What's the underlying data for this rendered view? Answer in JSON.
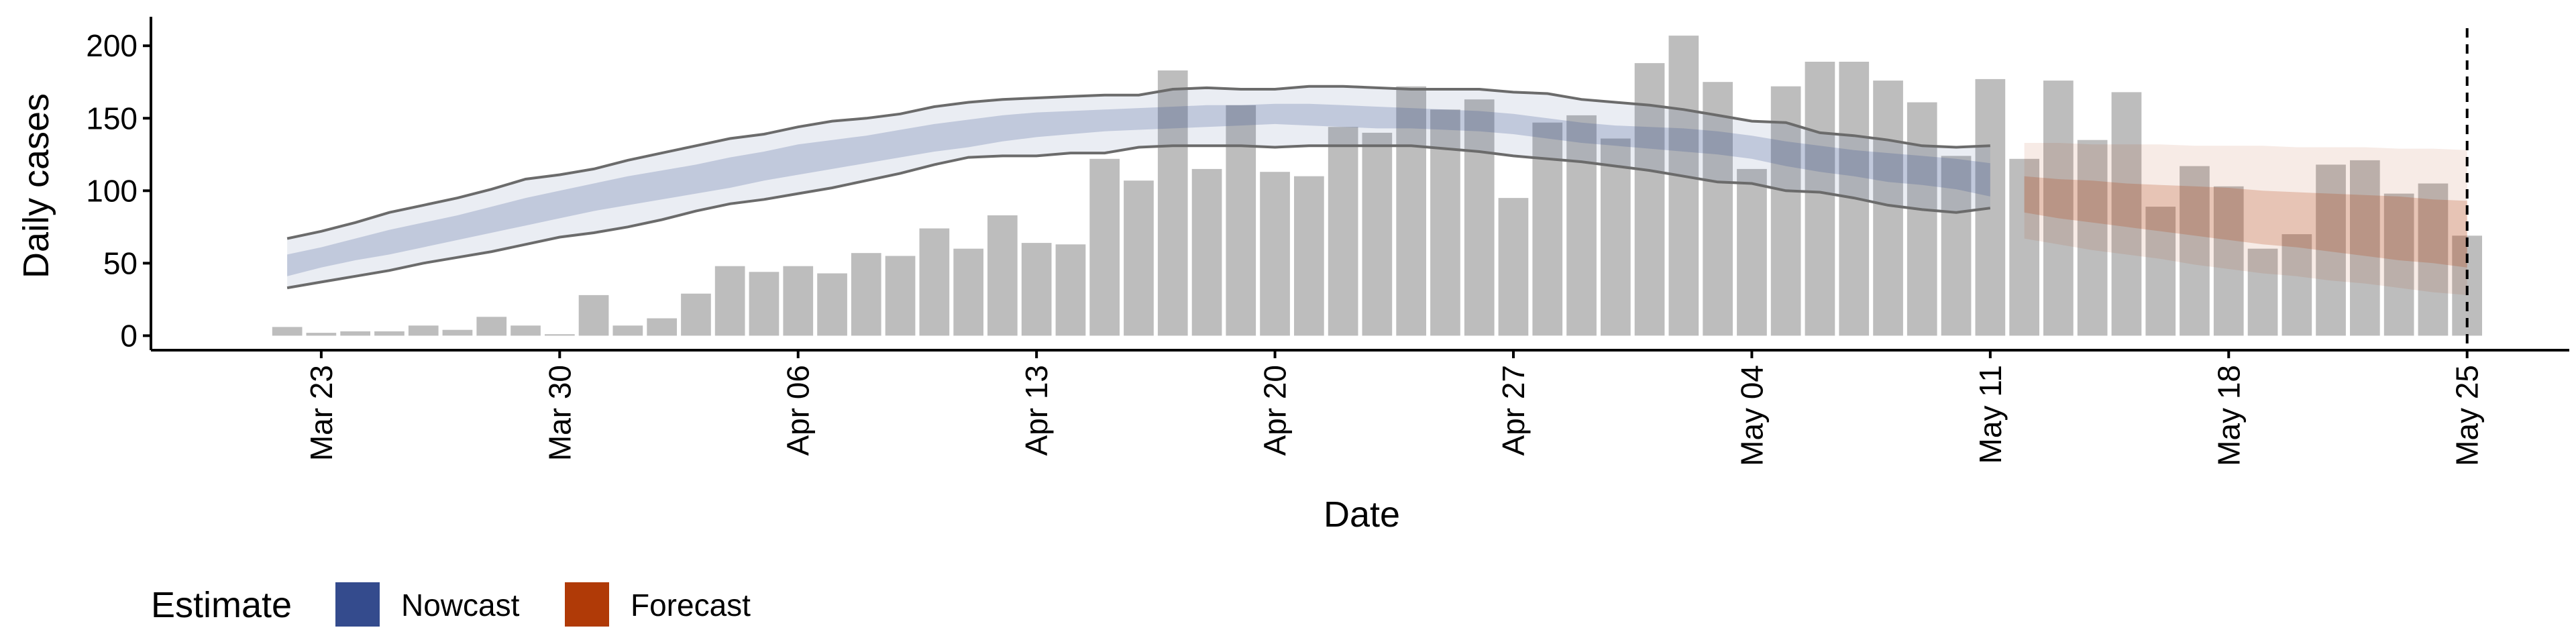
{
  "chart_data": {
    "type": "bar",
    "title": "",
    "xlabel": "Date",
    "ylabel": "Daily cases",
    "ylim": [
      -10,
      220
    ],
    "yticks": [
      0,
      50,
      100,
      150,
      200
    ],
    "x_tick_labels": [
      {
        "label": "Mar 23",
        "date": "2020-03-23"
      },
      {
        "label": "Mar 30",
        "date": "2020-03-30"
      },
      {
        "label": "Apr 06",
        "date": "2020-04-06"
      },
      {
        "label": "Apr 13",
        "date": "2020-04-13"
      },
      {
        "label": "Apr 20",
        "date": "2020-04-20"
      },
      {
        "label": "Apr 27",
        "date": "2020-04-27"
      },
      {
        "label": "May 04",
        "date": "2020-05-04"
      },
      {
        "label": "May 11",
        "date": "2020-05-11"
      },
      {
        "label": "May 18",
        "date": "2020-05-18"
      },
      {
        "label": "May 25",
        "date": "2020-05-25"
      }
    ],
    "xlim": [
      "2020-03-18",
      "2020-05-28"
    ],
    "first_date": "2020-03-22",
    "reported_cases": [
      6,
      2,
      3,
      3,
      7,
      4,
      13,
      7,
      1,
      28,
      7,
      12,
      29,
      48,
      44,
      48,
      43,
      57,
      55,
      74,
      60,
      83,
      64,
      63,
      122,
      107,
      183,
      115,
      159,
      113,
      110,
      144,
      140,
      172,
      156,
      163,
      95,
      147,
      152,
      136,
      188,
      207,
      175,
      115,
      172,
      189,
      189,
      176,
      161,
      124,
      177,
      122,
      176,
      135,
      168,
      89,
      117,
      103,
      60,
      70,
      118,
      121,
      98,
      105,
      69
    ],
    "vertical_line_date": "2020-05-25",
    "legend": {
      "title": "Estimate",
      "placement": "bottom-left",
      "items": [
        {
          "name": "Nowcast",
          "color": "#344b8d"
        },
        {
          "name": "Forecast",
          "color": "#b03a07"
        }
      ]
    },
    "series": [
      {
        "name": "Nowcast",
        "color": "#344b8d",
        "start_date": "2020-03-22",
        "median": [
          48,
          54,
          60,
          65,
          70,
          75,
          80,
          86,
          91,
          96,
          100,
          104,
          108,
          113,
          117,
          122,
          125,
          129,
          133,
          137,
          140,
          143,
          145,
          147,
          148,
          149,
          150,
          151,
          152,
          152,
          152,
          151,
          150,
          150,
          149,
          148,
          146,
          143,
          140,
          138,
          136,
          135,
          133,
          130,
          126,
          122,
          119,
          116,
          114,
          112,
          108
        ],
        "inner_lower": [
          41,
          47,
          52,
          56,
          61,
          66,
          71,
          76,
          81,
          86,
          90,
          94,
          98,
          102,
          107,
          111,
          115,
          119,
          123,
          127,
          130,
          134,
          137,
          139,
          141,
          142,
          143,
          144,
          145,
          146,
          145,
          144,
          143,
          143,
          142,
          141,
          139,
          136,
          133,
          131,
          129,
          127,
          125,
          122,
          117,
          113,
          110,
          106,
          104,
          101,
          96
        ],
        "inner_upper": [
          56,
          61,
          67,
          73,
          78,
          83,
          89,
          95,
          100,
          105,
          110,
          114,
          118,
          123,
          127,
          132,
          135,
          138,
          142,
          146,
          149,
          152,
          154,
          155,
          156,
          157,
          158,
          159,
          159,
          160,
          160,
          159,
          158,
          157,
          156,
          155,
          153,
          150,
          147,
          145,
          144,
          143,
          141,
          138,
          134,
          131,
          128,
          126,
          124,
          122,
          119
        ],
        "outer_lower": [
          33,
          37,
          41,
          45,
          50,
          54,
          58,
          63,
          68,
          71,
          75,
          80,
          86,
          91,
          94,
          98,
          102,
          107,
          112,
          118,
          123,
          124,
          124,
          126,
          126,
          130,
          131,
          131,
          131,
          130,
          131,
          131,
          131,
          131,
          129,
          127,
          124,
          122,
          120,
          117,
          114,
          110,
          106,
          105,
          100,
          99,
          95,
          90,
          87,
          85,
          88
        ],
        "outer_upper": [
          67,
          72,
          78,
          85,
          90,
          95,
          101,
          108,
          111,
          115,
          121,
          126,
          131,
          136,
          139,
          144,
          148,
          150,
          153,
          158,
          161,
          163,
          164,
          165,
          166,
          166,
          170,
          171,
          170,
          170,
          172,
          172,
          171,
          170,
          170,
          170,
          168,
          167,
          163,
          161,
          159,
          156,
          152,
          148,
          147,
          140,
          138,
          135,
          131,
          130,
          131
        ]
      },
      {
        "name": "Forecast",
        "color": "#b03a07",
        "start_date": "2020-05-12",
        "median": [
          98,
          96,
          94,
          92,
          90,
          88,
          86,
          85,
          83,
          81,
          79,
          77,
          76,
          74
        ],
        "inner_lower": [
          85,
          81,
          78,
          75,
          72,
          69,
          66,
          63,
          61,
          58,
          55,
          52,
          50,
          47
        ],
        "inner_upper": [
          110,
          108,
          107,
          105,
          104,
          103,
          102,
          100,
          99,
          98,
          97,
          96,
          94,
          93
        ],
        "outer_lower": [
          67,
          63,
          59,
          56,
          53,
          49,
          46,
          43,
          41,
          38,
          36,
          33,
          30,
          28
        ],
        "outer_upper": [
          133,
          133,
          132,
          132,
          132,
          131,
          131,
          131,
          130,
          130,
          130,
          129,
          129,
          128
        ]
      }
    ]
  }
}
